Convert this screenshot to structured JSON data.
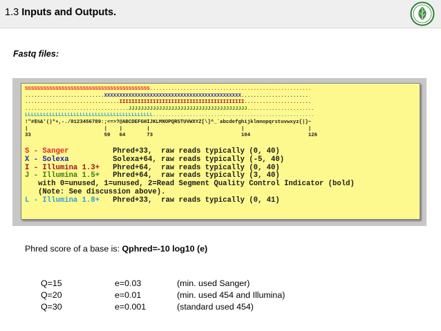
{
  "header": {
    "section_number": "1.3",
    "section_title": "Inputs and Outputs.",
    "logo_icon": "leaf-emblem-icon",
    "logo_colors": {
      "ring": "#2e7d32",
      "leaf": "#3e8e3e"
    }
  },
  "subtitle": "Fastq files:",
  "quality_figure": {
    "encoding_lines": {
      "sanger": "SSSSSSSSSSSSSSSSSSSSSSSSSSSSSSSSSSSSSSSSS.....................................................",
      "solexa": "..........................XXXXXXXXXXXXXXXXXXXXXXXXXXXXXXXXXXXXXXXXXXXXX......................",
      "illumina_13": "...............................IIIIIIIIIIIIIIIIIIIIIIIIIIIIIIIIIIIIIIIII......................",
      "illumina_15": "..................................JJJJJJJJJJJJJJJJJJJJJJJJJJJJJJJJJJJJJJJ......................",
      "illumina_18": "LLLLLLLLLLLLLLLLLLLLLLLLLLLLLLLLLLLLLLLLLL.....................................................",
      "ascii_chars": "!\"#$%&'()*+,-./0123456789:;<=>?@ABCDEFGHIJKLMNOPQRSTUVWXYZ[\\]^_`abcdefghijklmnopqrstuvwxyz{|}~",
      "markers": "|                         |    |        |                              |                     |",
      "ascii_codes": "33                        59   64       73                             104                   126"
    },
    "legend": [
      {
        "key": "S - Sanger",
        "desc": "Phred+33,  raw reads typically (0, 40)"
      },
      {
        "key": "X - Solexa",
        "desc": "Solexa+64, raw reads typically (-5, 40)"
      },
      {
        "key": "I - Illumina 1.3+",
        "desc": "Phred+64,  raw reads typically (0, 40)"
      },
      {
        "key": "J - Illumina 1.5+",
        "desc": "Phred+64,  raw reads typically (3, 40)"
      },
      {
        "key": "L - Illumina 1.8+",
        "desc": "Phred+33,  raw reads typically (0, 41)"
      }
    ],
    "note_line_1": "   with 0=unused, 1=unused, 2=Read Segment Quality Control Indicator (bold)",
    "note_line_2": "   (Note: See discussion above).",
    "colors": {
      "sanger": "#e8232a",
      "solexa": "#2322b8",
      "illumina_13": "#a50f1b",
      "illumina_15": "#357a18",
      "illumina_18": "#2f9fd8",
      "box_fill": "#fdf98f"
    }
  },
  "phred_text": {
    "lead": "Phred score of a base is: ",
    "formula": "Qphred=-10 log10 (e)"
  },
  "examples": [
    {
      "q": "Q=15",
      "e": "e=0.03",
      "note": "(min. used Sanger)"
    },
    {
      "q": "Q=20",
      "e": "e=0.01",
      "note": "(min. used 454 and Illumina)"
    },
    {
      "q": "Q=30",
      "e": "e=0.001",
      "note": "(standard used 454)"
    }
  ]
}
